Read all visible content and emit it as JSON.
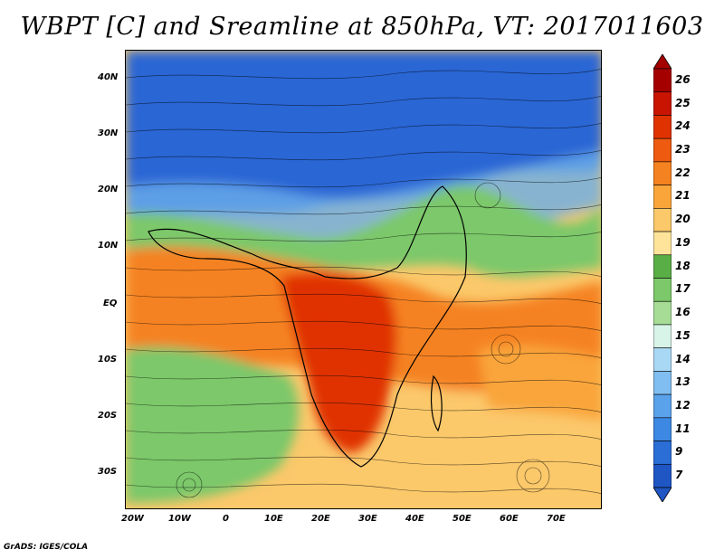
{
  "title": "WBPT [C] and Sreamline at 850hPa, VT: 2017011603",
  "credit": "GrADS: IGES/COLA",
  "y_ticks": [
    "40N",
    "30N",
    "20N",
    "10N",
    "EQ",
    "10S",
    "20S",
    "30S"
  ],
  "x_ticks": [
    "20W",
    "10W",
    "0",
    "10E",
    "20E",
    "30E",
    "40E",
    "50E",
    "60E",
    "70E"
  ],
  "colorbar": {
    "labels": [
      "26",
      "25",
      "24",
      "23",
      "22",
      "21",
      "20",
      "19",
      "18",
      "17",
      "16",
      "15",
      "14",
      "13",
      "12",
      "11",
      "9",
      "7"
    ],
    "colors": [
      "#a50000",
      "#c81400",
      "#e03200",
      "#ee5a10",
      "#f58220",
      "#f9a53a",
      "#fbc86a",
      "#fde49a",
      "#5aae46",
      "#7cc86a",
      "#a6dc96",
      "#d8f4e8",
      "#a8d8f4",
      "#80bdf0",
      "#5aa2ea",
      "#3c88e2",
      "#2a6ed6",
      "#1f56c4"
    ]
  },
  "wbpt_colors": {
    "cold": "#2a66d4",
    "cool": "#6aaeea",
    "mild": "#7cc86a",
    "warm": "#fbc86a",
    "hot": "#f58220",
    "hotter": "#e03200"
  }
}
